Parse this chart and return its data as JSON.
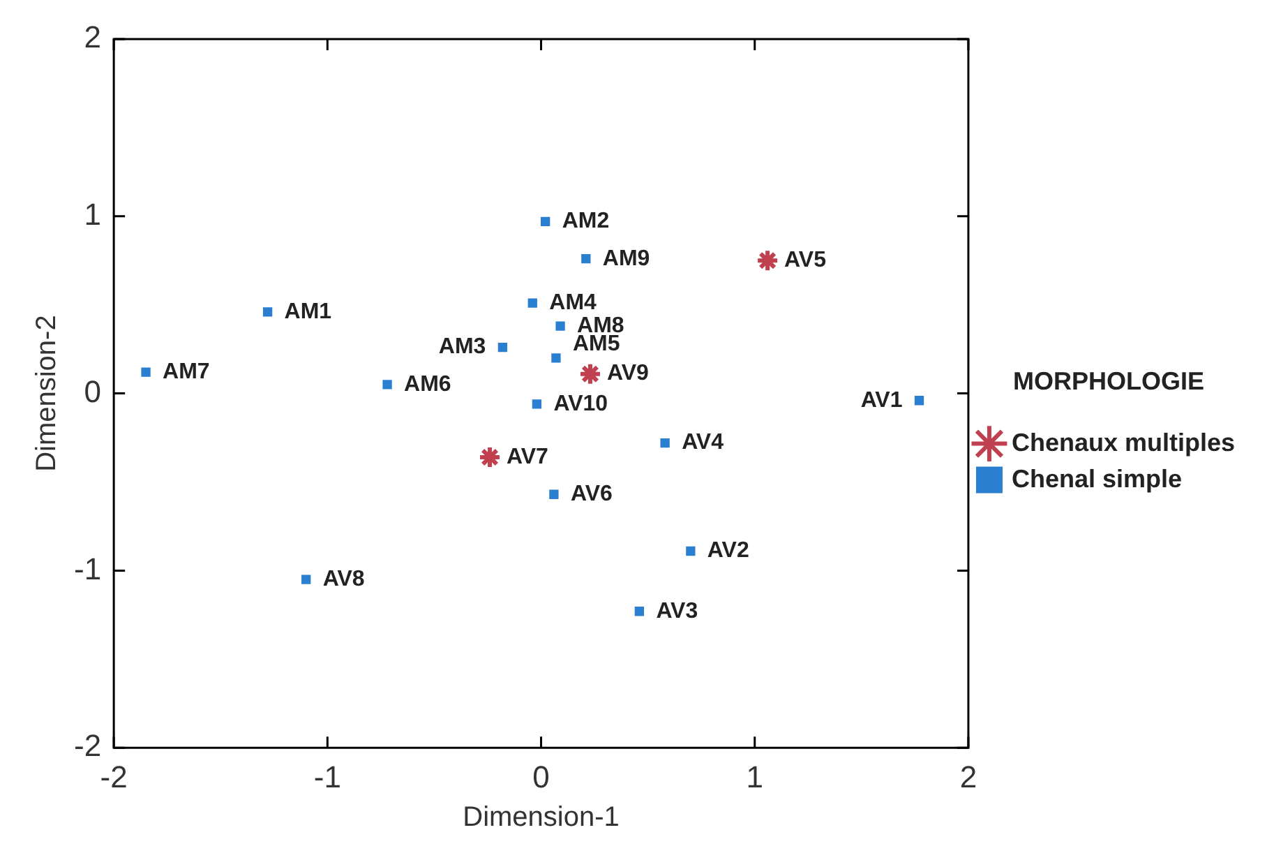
{
  "chart_data": {
    "type": "scatter",
    "xlabel": "Dimension-1",
    "ylabel": "Dimension-2",
    "legend_title": "MORPHOLOGIE",
    "legend": "right",
    "grid": false,
    "xlim": [
      -2,
      2
    ],
    "ylim": [
      -2,
      2
    ],
    "xticks": [
      -2,
      -1,
      0,
      1,
      2
    ],
    "yticks": [
      -2,
      -1,
      0,
      1,
      2
    ],
    "series": [
      {
        "name": "Chenaux multiples",
        "color": "#c04050",
        "x": [
          1.06,
          0.23,
          -0.24
        ],
        "values": [
          0.75,
          0.11,
          -0.36
        ]
      },
      {
        "name": "Chenal simple",
        "color": "#2a7fd0",
        "x": [
          0.02,
          0.21,
          -1.28,
          -0.04,
          0.09,
          -0.18,
          0.07,
          -1.85,
          -0.72,
          -0.02,
          1.77,
          0.58,
          0.06,
          0.7,
          -1.1,
          0.46
        ],
        "values": [
          0.97,
          0.76,
          0.46,
          0.51,
          0.38,
          0.26,
          0.2,
          0.12,
          0.05,
          -0.06,
          -0.04,
          -0.28,
          -0.57,
          -0.89,
          -1.05,
          -1.23
        ]
      }
    ],
    "annotations": [
      {
        "text": "AV5",
        "x": 1.06,
        "y": 0.75
      },
      {
        "text": "AV9",
        "x": 0.23,
        "y": 0.11
      },
      {
        "text": "AV7",
        "x": -0.24,
        "y": -0.36
      },
      {
        "text": "AM2",
        "x": 0.02,
        "y": 0.97
      },
      {
        "text": "AM9",
        "x": 0.21,
        "y": 0.76
      },
      {
        "text": "AM1",
        "x": -1.28,
        "y": 0.46
      },
      {
        "text": "AM4",
        "x": -0.04,
        "y": 0.51
      },
      {
        "text": "AM8",
        "x": 0.09,
        "y": 0.38
      },
      {
        "text": "AM3",
        "x": -0.18,
        "y": 0.26
      },
      {
        "text": "AM5",
        "x": 0.07,
        "y": 0.2
      },
      {
        "text": "AM7",
        "x": -1.85,
        "y": 0.12
      },
      {
        "text": "AM6",
        "x": -0.72,
        "y": 0.05
      },
      {
        "text": "AV10",
        "x": -0.02,
        "y": -0.06
      },
      {
        "text": "AV1",
        "x": 1.77,
        "y": -0.04
      },
      {
        "text": "AV4",
        "x": 0.58,
        "y": -0.28
      },
      {
        "text": "AV6",
        "x": 0.06,
        "y": -0.57
      },
      {
        "text": "AV2",
        "x": 0.7,
        "y": -0.89
      },
      {
        "text": "AV8",
        "x": -1.1,
        "y": -1.05
      },
      {
        "text": "AV3",
        "x": 0.46,
        "y": -1.23
      }
    ]
  }
}
